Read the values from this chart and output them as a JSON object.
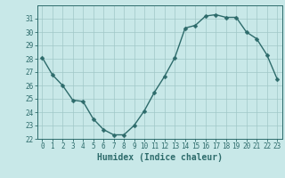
{
  "x": [
    0,
    1,
    2,
    3,
    4,
    5,
    6,
    7,
    8,
    9,
    10,
    11,
    12,
    13,
    14,
    15,
    16,
    17,
    18,
    19,
    20,
    21,
    22,
    23
  ],
  "y": [
    28.1,
    26.8,
    26.0,
    24.9,
    24.8,
    23.5,
    22.7,
    22.3,
    22.3,
    23.0,
    24.1,
    25.5,
    26.7,
    28.1,
    30.3,
    30.5,
    31.2,
    31.3,
    31.1,
    31.1,
    30.0,
    29.5,
    28.3,
    26.5
  ],
  "line_color": "#2d6b6b",
  "marker_color": "#2d6b6b",
  "bg_color": "#c8e8e8",
  "grid_color": "#a0c8c8",
  "xlabel": "Humidex (Indice chaleur)",
  "ylim": [
    22,
    32
  ],
  "xlim": [
    -0.5,
    23.5
  ],
  "yticks": [
    22,
    23,
    24,
    25,
    26,
    27,
    28,
    29,
    30,
    31
  ],
  "xticks": [
    0,
    1,
    2,
    3,
    4,
    5,
    6,
    7,
    8,
    9,
    10,
    11,
    12,
    13,
    14,
    15,
    16,
    17,
    18,
    19,
    20,
    21,
    22,
    23
  ],
  "tick_fontsize": 5.5,
  "xlabel_fontsize": 7,
  "line_width": 1.0,
  "marker_size": 2.5
}
